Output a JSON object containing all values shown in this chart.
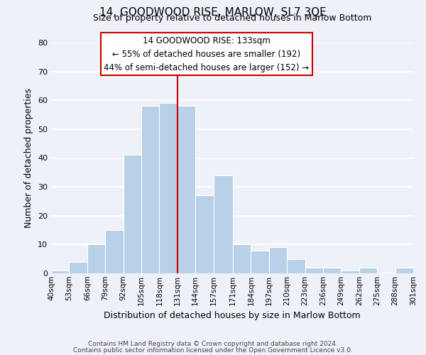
{
  "title": "14, GOODWOOD RISE, MARLOW, SL7 3QE",
  "subtitle": "Size of property relative to detached houses in Marlow Bottom",
  "xlabel": "Distribution of detached houses by size in Marlow Bottom",
  "ylabel": "Number of detached properties",
  "bar_color": "#b8d0e8",
  "bar_edge_color": "#ffffff",
  "background_color": "#eef2f8",
  "grid_color": "#ffffff",
  "bins": [
    40,
    53,
    66,
    79,
    92,
    105,
    118,
    131,
    144,
    157,
    171,
    184,
    197,
    210,
    223,
    236,
    249,
    262,
    275,
    288,
    301
  ],
  "counts": [
    1,
    4,
    10,
    15,
    41,
    58,
    59,
    58,
    27,
    34,
    10,
    8,
    9,
    5,
    2,
    2,
    1,
    2,
    0,
    2
  ],
  "tick_labels": [
    "40sqm",
    "53sqm",
    "66sqm",
    "79sqm",
    "92sqm",
    "105sqm",
    "118sqm",
    "131sqm",
    "144sqm",
    "157sqm",
    "171sqm",
    "184sqm",
    "197sqm",
    "210sqm",
    "223sqm",
    "236sqm",
    "249sqm",
    "262sqm",
    "275sqm",
    "288sqm",
    "301sqm"
  ],
  "vline_x": 131,
  "vline_color": "#cc0000",
  "ylim": [
    0,
    80
  ],
  "yticks": [
    0,
    10,
    20,
    30,
    40,
    50,
    60,
    70,
    80
  ],
  "annotation_title": "14 GOODWOOD RISE: 133sqm",
  "annotation_line1": "← 55% of detached houses are smaller (192)",
  "annotation_line2": "44% of semi-detached houses are larger (152) →",
  "footer1": "Contains HM Land Registry data © Crown copyright and database right 2024.",
  "footer2": "Contains public sector information licensed under the Open Government Licence v3.0."
}
